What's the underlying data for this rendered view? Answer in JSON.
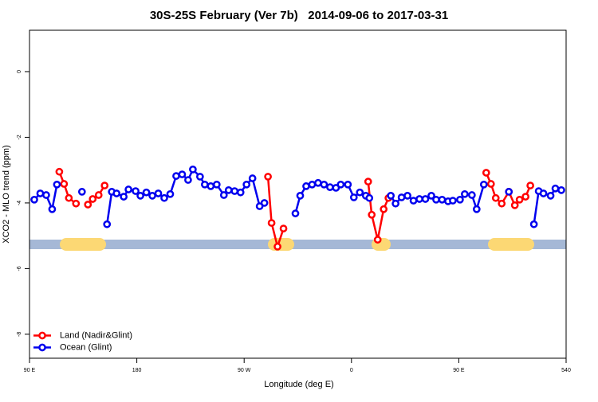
{
  "chart_data": {
    "type": "line",
    "title": "30S-25S February (Ver 7b)   2014-09-06 to 2017-03-31",
    "x_label": "Longitude (deg E)",
    "y_label": "XCO2 - MLO trend (ppm)",
    "xlim": [
      90,
      540
    ],
    "ylim": [
      -8.73,
      1.26
    ],
    "xticks": [
      {
        "value": 90,
        "label": "90 E"
      },
      180,
      {
        "value": 270,
        "label": "90 W"
      },
      {
        "value": 360,
        "label": "0"
      },
      {
        "value": 450,
        "label": "90 E"
      },
      540
    ],
    "yticks": [
      0,
      -2,
      -4,
      -6,
      -8
    ],
    "legend": "bottomleft",
    "series": [
      {
        "name": "Land (Nadir&Glint)",
        "color": "#ff0000",
        "x": [
          115,
          119,
          123,
          129,
          134,
          139,
          143,
          148,
          153,
          155,
          290,
          293,
          298,
          303,
          313,
          374,
          377,
          382,
          387,
          391,
          393,
          473,
          477,
          481,
          486,
          492,
          497,
          501,
          506,
          510
        ],
        "values": [
          -3.05,
          -3.42,
          -3.85,
          -4.02,
          null,
          -4.05,
          -3.88,
          -3.76,
          -3.47,
          null,
          -3.2,
          -4.61,
          -5.33,
          -4.78,
          null,
          -3.35,
          -4.36,
          -5.12,
          -4.19,
          -3.85,
          null,
          -3.08,
          -3.42,
          -3.85,
          -4.02,
          -3.66,
          -4.07,
          -3.9,
          -3.81,
          -3.47
        ]
      },
      {
        "name": "Ocean (Glint)",
        "color": "#0000ee",
        "x": [
          94,
          99,
          104,
          109,
          113,
          115,
          134,
          153,
          155,
          159,
          163,
          169,
          173,
          179,
          183,
          188,
          193,
          198,
          203,
          208,
          213,
          218,
          223,
          227,
          233,
          237,
          242,
          247,
          253,
          257,
          262,
          267,
          272,
          277,
          283,
          287,
          290,
          313,
          317,
          322,
          327,
          332,
          337,
          342,
          347,
          351,
          357,
          362,
          367,
          372,
          375,
          391,
          393,
          397,
          402,
          407,
          412,
          417,
          422,
          427,
          431,
          436,
          441,
          445,
          451,
          455,
          461,
          465,
          471,
          473,
          492,
          510,
          513,
          517,
          521,
          527,
          531,
          536
        ],
        "values": [
          -3.9,
          -3.71,
          -3.76,
          -4.19,
          -3.44,
          null,
          -3.66,
          null,
          -4.65,
          -3.66,
          -3.71,
          -3.81,
          -3.59,
          -3.64,
          -3.78,
          -3.68,
          -3.78,
          -3.71,
          -3.85,
          -3.73,
          -3.18,
          -3.13,
          -3.3,
          -2.98,
          -3.2,
          -3.44,
          -3.49,
          -3.44,
          -3.76,
          -3.61,
          -3.64,
          -3.68,
          -3.44,
          -3.25,
          -4.1,
          -4.0,
          null,
          -4.32,
          -3.78,
          -3.49,
          -3.44,
          -3.39,
          -3.44,
          -3.52,
          -3.54,
          -3.44,
          -3.44,
          -3.83,
          -3.68,
          -3.78,
          -3.85,
          null,
          -3.78,
          -4.02,
          -3.83,
          -3.78,
          -3.93,
          -3.88,
          -3.88,
          -3.78,
          -3.9,
          -3.9,
          -3.95,
          -3.93,
          -3.9,
          -3.73,
          -3.76,
          -4.19,
          -3.44,
          null,
          -3.66,
          null,
          -4.65,
          -3.64,
          -3.71,
          -3.78,
          -3.56,
          -3.61
        ]
      }
    ]
  }
}
